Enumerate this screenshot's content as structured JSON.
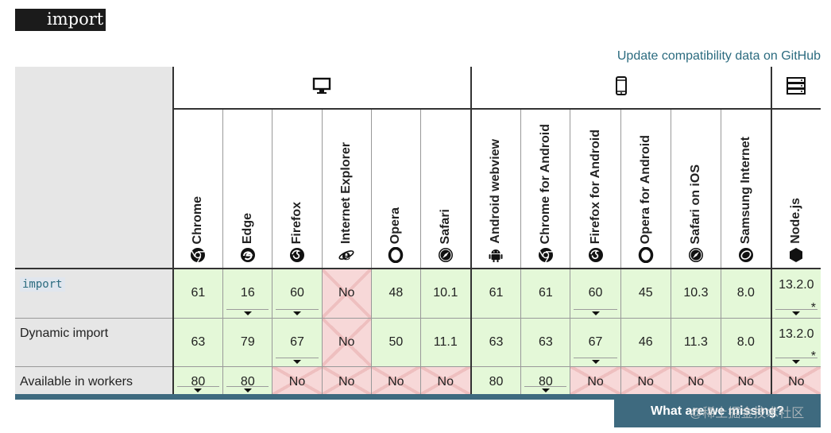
{
  "title": "import",
  "update_link": "Update compatibility data on GitHub",
  "platforms": [
    {
      "name": "desktop",
      "icon": "desktop-icon",
      "span": 6
    },
    {
      "name": "mobile",
      "icon": "mobile-icon",
      "span": 6
    },
    {
      "name": "server",
      "icon": "server-icon",
      "span": 1
    }
  ],
  "browsers": [
    {
      "name": "Chrome",
      "icon": "chrome-icon"
    },
    {
      "name": "Edge",
      "icon": "edge-icon"
    },
    {
      "name": "Firefox",
      "icon": "firefox-icon"
    },
    {
      "name": "Internet Explorer",
      "icon": "ie-icon"
    },
    {
      "name": "Opera",
      "icon": "opera-icon"
    },
    {
      "name": "Safari",
      "icon": "safari-icon"
    },
    {
      "name": "Android webview",
      "icon": "android-icon"
    },
    {
      "name": "Chrome for Android",
      "icon": "chrome-icon"
    },
    {
      "name": "Firefox for Android",
      "icon": "firefox-icon"
    },
    {
      "name": "Opera for Android",
      "icon": "opera-icon"
    },
    {
      "name": "Safari on iOS",
      "icon": "safari-icon"
    },
    {
      "name": "Samsung Internet",
      "icon": "samsung-icon"
    },
    {
      "name": "Node.js",
      "icon": "nodejs-icon"
    }
  ],
  "features": [
    {
      "name": "import",
      "code": true,
      "support": [
        {
          "v": "61",
          "ok": true
        },
        {
          "v": "16",
          "ok": true,
          "more": true
        },
        {
          "v": "60",
          "ok": true,
          "more": true
        },
        {
          "v": "No",
          "ok": false
        },
        {
          "v": "48",
          "ok": true
        },
        {
          "v": "10.1",
          "ok": true
        },
        {
          "v": "61",
          "ok": true
        },
        {
          "v": "61",
          "ok": true
        },
        {
          "v": "60",
          "ok": true,
          "more": true
        },
        {
          "v": "45",
          "ok": true
        },
        {
          "v": "10.3",
          "ok": true
        },
        {
          "v": "8.0",
          "ok": true
        },
        {
          "v": "13.2.0",
          "ok": true,
          "more": true,
          "note": "*"
        }
      ]
    },
    {
      "name": "Dynamic import",
      "code": false,
      "support": [
        {
          "v": "63",
          "ok": true
        },
        {
          "v": "79",
          "ok": true
        },
        {
          "v": "67",
          "ok": true,
          "more": true
        },
        {
          "v": "No",
          "ok": false
        },
        {
          "v": "50",
          "ok": true
        },
        {
          "v": "11.1",
          "ok": true
        },
        {
          "v": "63",
          "ok": true
        },
        {
          "v": "63",
          "ok": true
        },
        {
          "v": "67",
          "ok": true,
          "more": true
        },
        {
          "v": "46",
          "ok": true
        },
        {
          "v": "11.3",
          "ok": true
        },
        {
          "v": "8.0",
          "ok": true
        },
        {
          "v": "13.2.0",
          "ok": true,
          "more": true,
          "note": "*"
        }
      ]
    },
    {
      "name": "Available in workers",
      "code": false,
      "support": [
        {
          "v": "80",
          "ok": true,
          "more": true
        },
        {
          "v": "80",
          "ok": true,
          "more": true
        },
        {
          "v": "No",
          "ok": false
        },
        {
          "v": "No",
          "ok": false
        },
        {
          "v": "No",
          "ok": false
        },
        {
          "v": "No",
          "ok": false
        },
        {
          "v": "80",
          "ok": true
        },
        {
          "v": "80",
          "ok": true,
          "more": true
        },
        {
          "v": "No",
          "ok": false
        },
        {
          "v": "No",
          "ok": false
        },
        {
          "v": "No",
          "ok": false
        },
        {
          "v": "No",
          "ok": false
        },
        {
          "v": "No",
          "ok": false
        }
      ]
    }
  ],
  "missing_button": "What are we missing?",
  "watermark": "@稀土掘金技术社区",
  "colors": {
    "supported": "#e4f8d8",
    "unsupported": "#f7d8d8",
    "accent": "#3e6a7f",
    "link": "#2b6b7f"
  }
}
